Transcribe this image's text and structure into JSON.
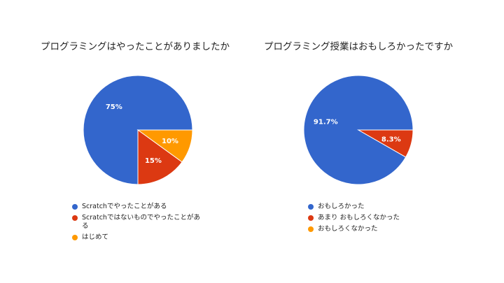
{
  "chart_data": [
    {
      "type": "pie",
      "title": "プログラミングはやったことがありましたか",
      "categories": [
        "Scratchでやったことがある",
        "Scratchではないものでやったことがある",
        "はじめて"
      ],
      "values": [
        75,
        15,
        10
      ],
      "labels": [
        "75%",
        "15%",
        "10%"
      ],
      "colors": [
        "#3366cc",
        "#dc3912",
        "#ff9900"
      ],
      "legend_position": "bottom"
    },
    {
      "type": "pie",
      "title": "プログラミング授業はおもしろかったですか",
      "categories": [
        "おもしろかった",
        "あまり おもしろくなかった",
        "おもしろくなかった"
      ],
      "values": [
        91.7,
        8.3,
        0
      ],
      "labels": [
        "91.7%",
        "8.3%",
        ""
      ],
      "colors": [
        "#3366cc",
        "#dc3912",
        "#ff9900"
      ],
      "legend_position": "bottom"
    }
  ]
}
